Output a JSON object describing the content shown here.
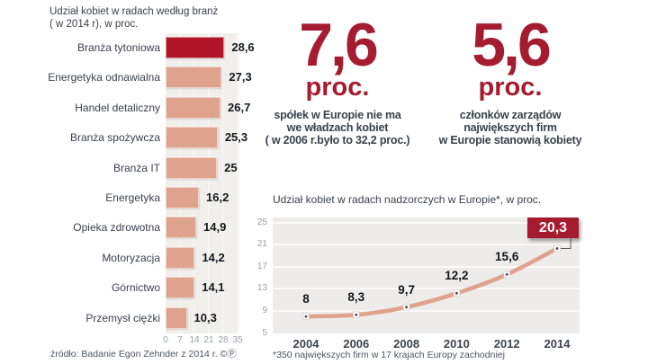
{
  "colors": {
    "accent_red": "#a51c30",
    "bar_salmon": "#dfa28d",
    "bar_highlight_red": "#b01527",
    "text_dark": "#39424d",
    "line_salmon": "#dfa28d"
  },
  "bar_chart_title": {
    "line1": "Udział kobiet w radach według branż",
    "line2": "( w 2014 r), w proc."
  },
  "source": "źródło: Badanie Egon Zehnder z 2014 r. ©Ⓟ",
  "stats": [
    {
      "value": "7,6",
      "unit": "proc.",
      "lines": [
        "spółek w Europie nie ma",
        "we władzach kobiet",
        "( w 2006 r.było to 32,2 proc.)"
      ]
    },
    {
      "value": "5,6",
      "unit": "proc.",
      "lines": [
        "członków zarządów",
        "największych firm",
        "w Europie stanowią kobiety"
      ]
    }
  ],
  "chart_data": [
    {
      "type": "bar",
      "orientation": "horizontal",
      "title": "Udział kobiet w radach według branż ( w 2014 r), w proc.",
      "categories": [
        "Branża tytoniowa",
        "Energetyka odnawialna",
        "Handel detaliczny",
        "Branża spożywcza",
        "Branża IT",
        "Energetyka",
        "Opieka zdrowotna",
        "Motoryzacja",
        "Górnictwo",
        "Przemysł ciężki"
      ],
      "values": [
        28.6,
        27.3,
        26.7,
        25.3,
        25,
        16.2,
        14.9,
        14.2,
        14.1,
        10.3
      ],
      "value_labels": [
        "28,6",
        "27,3",
        "26,7",
        "25,3",
        "25",
        "16,2",
        "14,9",
        "14,2",
        "14,1",
        "10,3"
      ],
      "xlim": [
        0,
        35
      ],
      "x_ticks": [
        0,
        7,
        14,
        21,
        28,
        35
      ],
      "highlight_index": 0,
      "grid": true,
      "legend": "none"
    },
    {
      "type": "line",
      "title": "Udział kobiet w radach nadzorczych w Europie*, w proc.",
      "x": [
        "2004",
        "2006",
        "2008",
        "2010",
        "2012",
        "2014"
      ],
      "values": [
        8,
        8.3,
        9.7,
        12.2,
        15.6,
        20.3
      ],
      "value_labels": [
        "8",
        "8,3",
        "9,7",
        "12,2",
        "15,6",
        "20,3"
      ],
      "y_ticks": [
        25,
        21,
        17,
        13,
        9,
        5
      ],
      "ylim": [
        5,
        25
      ],
      "grid": true,
      "legend": "none",
      "highlight_last": true,
      "footnote": "*350 największych firm w 17 krajach Europy zachodniej"
    }
  ]
}
